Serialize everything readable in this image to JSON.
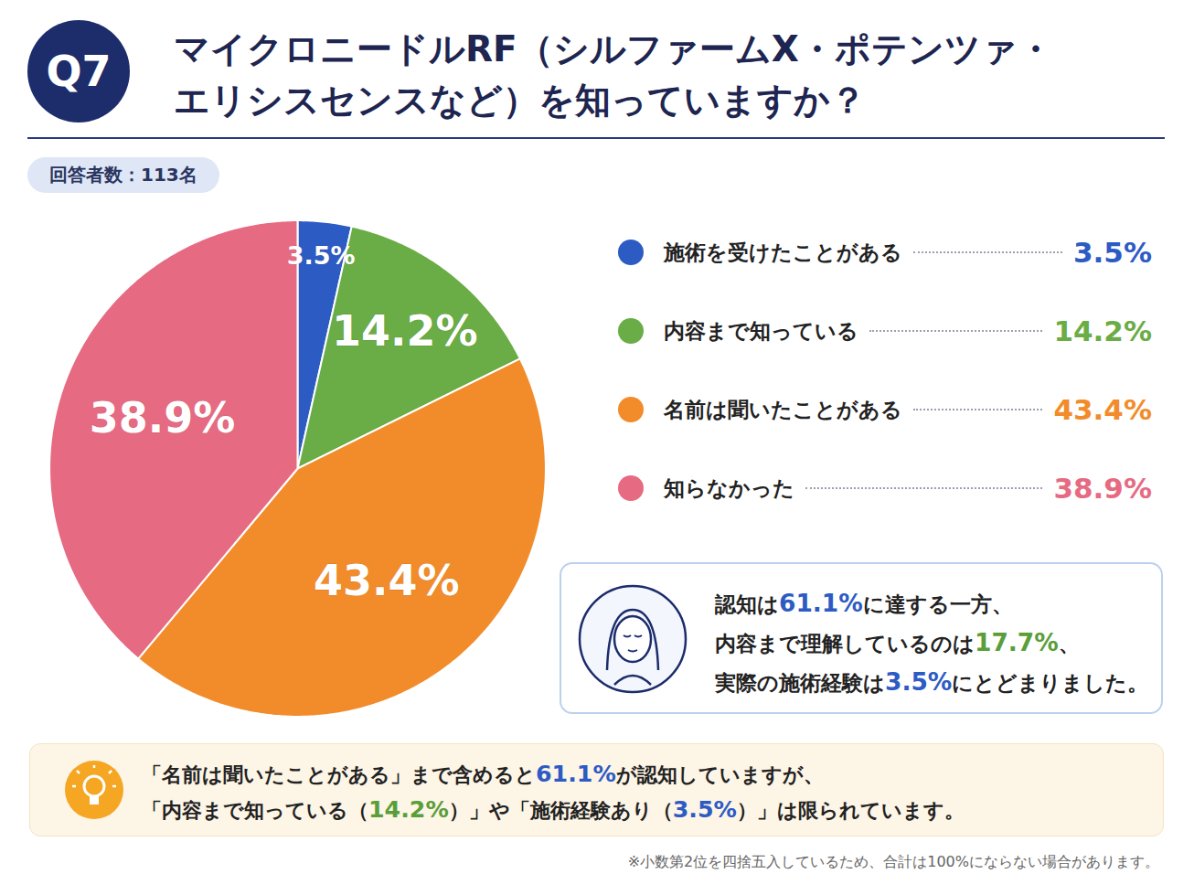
{
  "chart_data": {
    "type": "pie",
    "question_number": "Q7",
    "title": [
      "マイクロニードルRF（シルファームX・ポテンツァ・",
      "エリシスセンスなど）を知っていますか？"
    ],
    "respondents": "回答者数：113名",
    "categories": [
      "施術を受けたことがある",
      "内容まで知っている",
      "名前は聞いたことがある",
      "知らなかった"
    ],
    "values": [
      3.5,
      14.2,
      43.4,
      38.9
    ],
    "value_labels": [
      "3.5%",
      "14.2%",
      "43.4%",
      "38.9%"
    ],
    "colors": [
      "#2d5bc4",
      "#6aac46",
      "#f28c2b",
      "#e66b82"
    ],
    "data_labels": true,
    "legend": "right",
    "summary": [
      [
        {
          "text": "認知は"
        },
        {
          "text": "61.1%",
          "color": "#2d5bc4"
        },
        {
          "text": "に達する一方、"
        }
      ],
      [
        {
          "text": "内容まで理解しているのは"
        },
        {
          "text": "17.7%",
          "color": "#5a9e3a"
        },
        {
          "text": "、"
        }
      ],
      [
        {
          "text": "実際の施術経験は"
        },
        {
          "text": "3.5%",
          "color": "#2d5bc4"
        },
        {
          "text": "にとどまりました。"
        }
      ]
    ],
    "note": [
      [
        {
          "text": "「名前は聞いたことがある」まで含めると"
        },
        {
          "text": "61.1%",
          "color": "#2d5bc4"
        },
        {
          "text": "が認知していますが、"
        }
      ],
      [
        {
          "text": "「内容まで知っている（"
        },
        {
          "text": "14.2%",
          "color": "#5a9e3a"
        },
        {
          "text": "）」や「施術経験あり（"
        },
        {
          "text": "3.5%",
          "color": "#2d5bc4"
        },
        {
          "text": "）」は限られています。"
        }
      ]
    ],
    "footnote": "※小数第2位を四捨五入しているため、合計は100%にならない場合があります。"
  }
}
